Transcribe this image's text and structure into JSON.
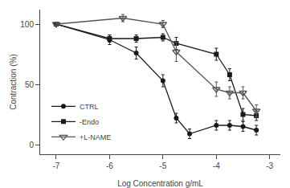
{
  "chart_data": {
    "type": "line",
    "xlabel": "Log Concentration g/mL",
    "ylabel": "Contraction (%)",
    "xlim": [
      -7.3,
      -2.8
    ],
    "ylim": [
      -8,
      112
    ],
    "xticks": [
      -7,
      -6,
      -5,
      -4,
      -3
    ],
    "yticks": [
      0,
      50,
      100
    ],
    "grid": false,
    "legend": "lower left",
    "series": [
      {
        "name": "CTRL",
        "color": "#1a1a1a",
        "marker": "circle",
        "x": [
          -7,
          -6,
          -5.5,
          -5,
          -4.75,
          -4.5,
          -4,
          -3.75,
          -3.5,
          -3.25
        ],
        "values": [
          100,
          87,
          76,
          53,
          22,
          9,
          16,
          16,
          15,
          12
        ],
        "yerr": [
          1,
          4,
          5,
          5,
          4,
          4,
          4,
          4,
          4,
          4
        ]
      },
      {
        "name": "-Endo",
        "color": "#1a1a1a",
        "marker": "square",
        "x": [
          -7,
          -6,
          -5.5,
          -5,
          -4.75,
          -4,
          -3.75,
          -3.5,
          -3.25
        ],
        "values": [
          100,
          88,
          88,
          89,
          84,
          75,
          58,
          25,
          24
        ],
        "yerr": [
          1,
          3,
          3,
          3,
          5,
          5,
          5,
          5,
          4
        ]
      },
      {
        "name": "+L-NAME",
        "color": "#555555",
        "marker": "triangle-down-open",
        "x": [
          -7,
          -5.75,
          -5,
          -4.75,
          -4,
          -3.75,
          -3.5,
          -3.25
        ],
        "values": [
          100,
          105,
          100,
          77,
          46,
          43,
          43,
          28
        ],
        "yerr": [
          1,
          3,
          3,
          8,
          6,
          5,
          5,
          5
        ]
      }
    ]
  }
}
